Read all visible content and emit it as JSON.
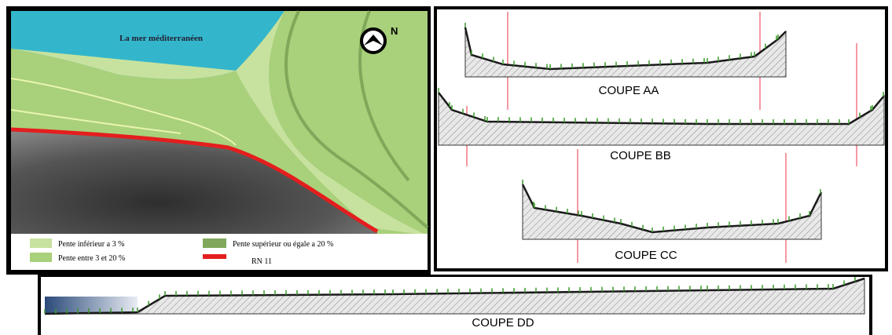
{
  "map": {
    "sea_label": "La mer méditerranéen",
    "north": "N",
    "legend": [
      {
        "label": "Pente inférieur a 3 %"
      },
      {
        "label": "Pente entre 3 et 20 %"
      },
      {
        "label": "Pente supérieur ou égale a 20 %"
      },
      {
        "label": "RN 11"
      }
    ]
  },
  "sections": [
    {
      "label": "COUPE  AA"
    },
    {
      "label": "COUPE  BB"
    },
    {
      "label": "COUPE  CC"
    },
    {
      "label": "COUPE DD"
    }
  ]
}
